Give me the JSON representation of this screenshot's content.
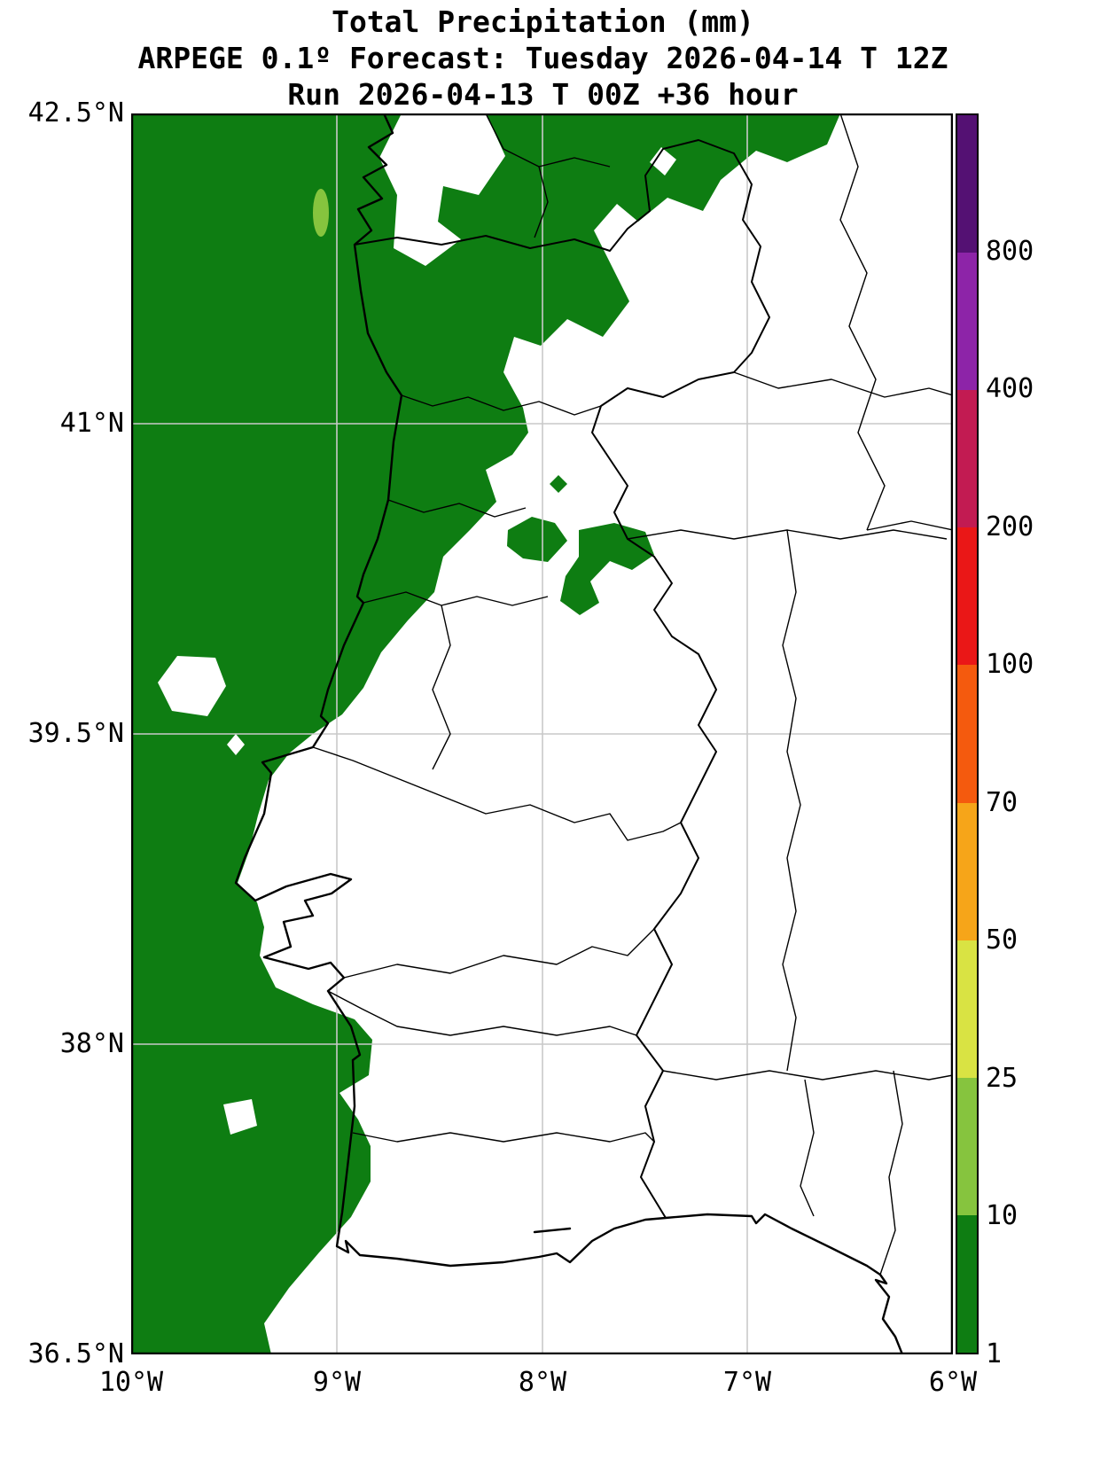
{
  "title": {
    "line1": "Total Precipitation (mm)",
    "line2": "ARPEGE 0.1º Forecast: Tuesday 2026-04-14 T 12Z",
    "line3": "Run 2026-04-13 T 00Z +36 hour"
  },
  "axes": {
    "lat_ticks": [
      "42.5°N",
      "41°N",
      "39.5°N",
      "38°N",
      "36.5°N"
    ],
    "lon_ticks": [
      "10°W",
      "9°W",
      "8°W",
      "7°W",
      "6°W"
    ]
  },
  "colorbar": {
    "tick_labels": [
      "800",
      "400",
      "200",
      "100",
      "70",
      "50",
      "25",
      "10",
      "1"
    ],
    "segments": [
      {
        "range": "1-10",
        "color": "#0e7d12"
      },
      {
        "range": "10-25",
        "color": "#86c43e"
      },
      {
        "range": "25-50",
        "color": "#d9e343"
      },
      {
        "range": "50-70",
        "color": "#f6a519"
      },
      {
        "range": "70-100",
        "color": "#f45a0e"
      },
      {
        "range": "100-200",
        "color": "#ea1717"
      },
      {
        "range": "200-400",
        "color": "#c21b52"
      },
      {
        "range": "400-800",
        "color": "#8d24a8"
      },
      {
        "range": "800+",
        "color": "#541173"
      }
    ]
  },
  "chart_data": {
    "type": "heatmap",
    "title": "Total Precipitation (mm)",
    "subtitle": "ARPEGE 0.1º Forecast: Tuesday 2026-04-14 T 12Z",
    "run_info": "Run 2026-04-13 T 00Z +36 hour",
    "lat_range": [
      36.5,
      42.5
    ],
    "lon_range": [
      -10,
      -6
    ],
    "grid": true,
    "legend_position": "right",
    "scale_boundaries_mm": [
      1,
      10,
      25,
      50,
      70,
      100,
      200,
      400,
      800
    ],
    "depicted_values": "Precipitation 1-10 mm over the Atlantic and northern/coastal Portugal; one small 10-25 mm cell near 9.1°W 42.1°N; interior Iberia below 1 mm"
  },
  "colors": {
    "precip_green": "#0e7d12",
    "precip_light_green": "#86c43e",
    "gridline_gray": "#c9c9c9",
    "coastline_black": "#000000"
  }
}
